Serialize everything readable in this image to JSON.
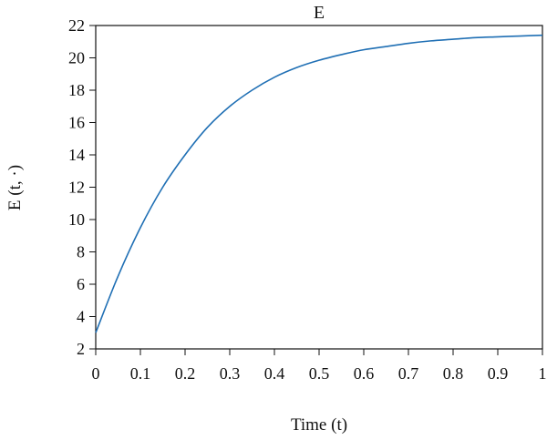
{
  "chart_data": {
    "type": "line",
    "title": "E",
    "xlabel": "Time (t)",
    "ylabel": "E (t, ·)",
    "xlim": [
      0,
      1
    ],
    "ylim": [
      2,
      22
    ],
    "xticks": [
      0,
      0.1,
      0.2,
      0.3,
      0.4,
      0.5,
      0.6,
      0.7,
      0.8,
      0.9,
      1
    ],
    "xtick_labels": [
      "0",
      "0.1",
      "0.2",
      "0.3",
      "0.4",
      "0.5",
      "0.6",
      "0.7",
      "0.8",
      "0.9",
      "1"
    ],
    "yticks": [
      2,
      4,
      6,
      8,
      10,
      12,
      14,
      16,
      18,
      20,
      22
    ],
    "ytick_labels": [
      "2",
      "4",
      "6",
      "8",
      "10",
      "12",
      "14",
      "16",
      "18",
      "20",
      "22"
    ],
    "grid": false,
    "series": [
      {
        "color": "#1f6fb4",
        "x": [
          0,
          0.05,
          0.1,
          0.15,
          0.2,
          0.25,
          0.3,
          0.35,
          0.4,
          0.45,
          0.5,
          0.55,
          0.6,
          0.65,
          0.7,
          0.75,
          0.8,
          0.85,
          0.9,
          0.95,
          1.0
        ],
        "y": [
          3.0,
          6.5,
          9.5,
          12.0,
          14.0,
          15.7,
          17.0,
          18.0,
          18.8,
          19.4,
          19.85,
          20.2,
          20.5,
          20.7,
          20.9,
          21.05,
          21.15,
          21.25,
          21.3,
          21.35,
          21.4
        ]
      }
    ]
  }
}
